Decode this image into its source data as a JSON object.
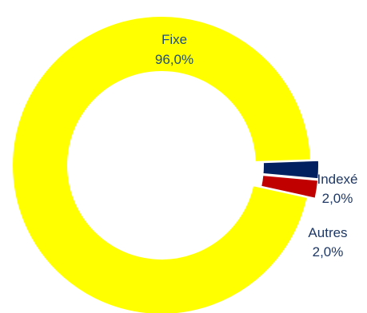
{
  "chart_data": {
    "type": "pie",
    "donut": true,
    "categories": [
      "Fixe",
      "Indexé",
      "Autres"
    ],
    "values": [
      96.0,
      2.0,
      2.0
    ],
    "value_labels": [
      "96,0%",
      "2,0%",
      "2,0%"
    ],
    "colors": [
      "#FFFF00",
      "#002060",
      "#C00000"
    ],
    "label_colors": [
      "#1F4E79",
      "#1F3864",
      "#1F3864"
    ],
    "legend": "none"
  }
}
